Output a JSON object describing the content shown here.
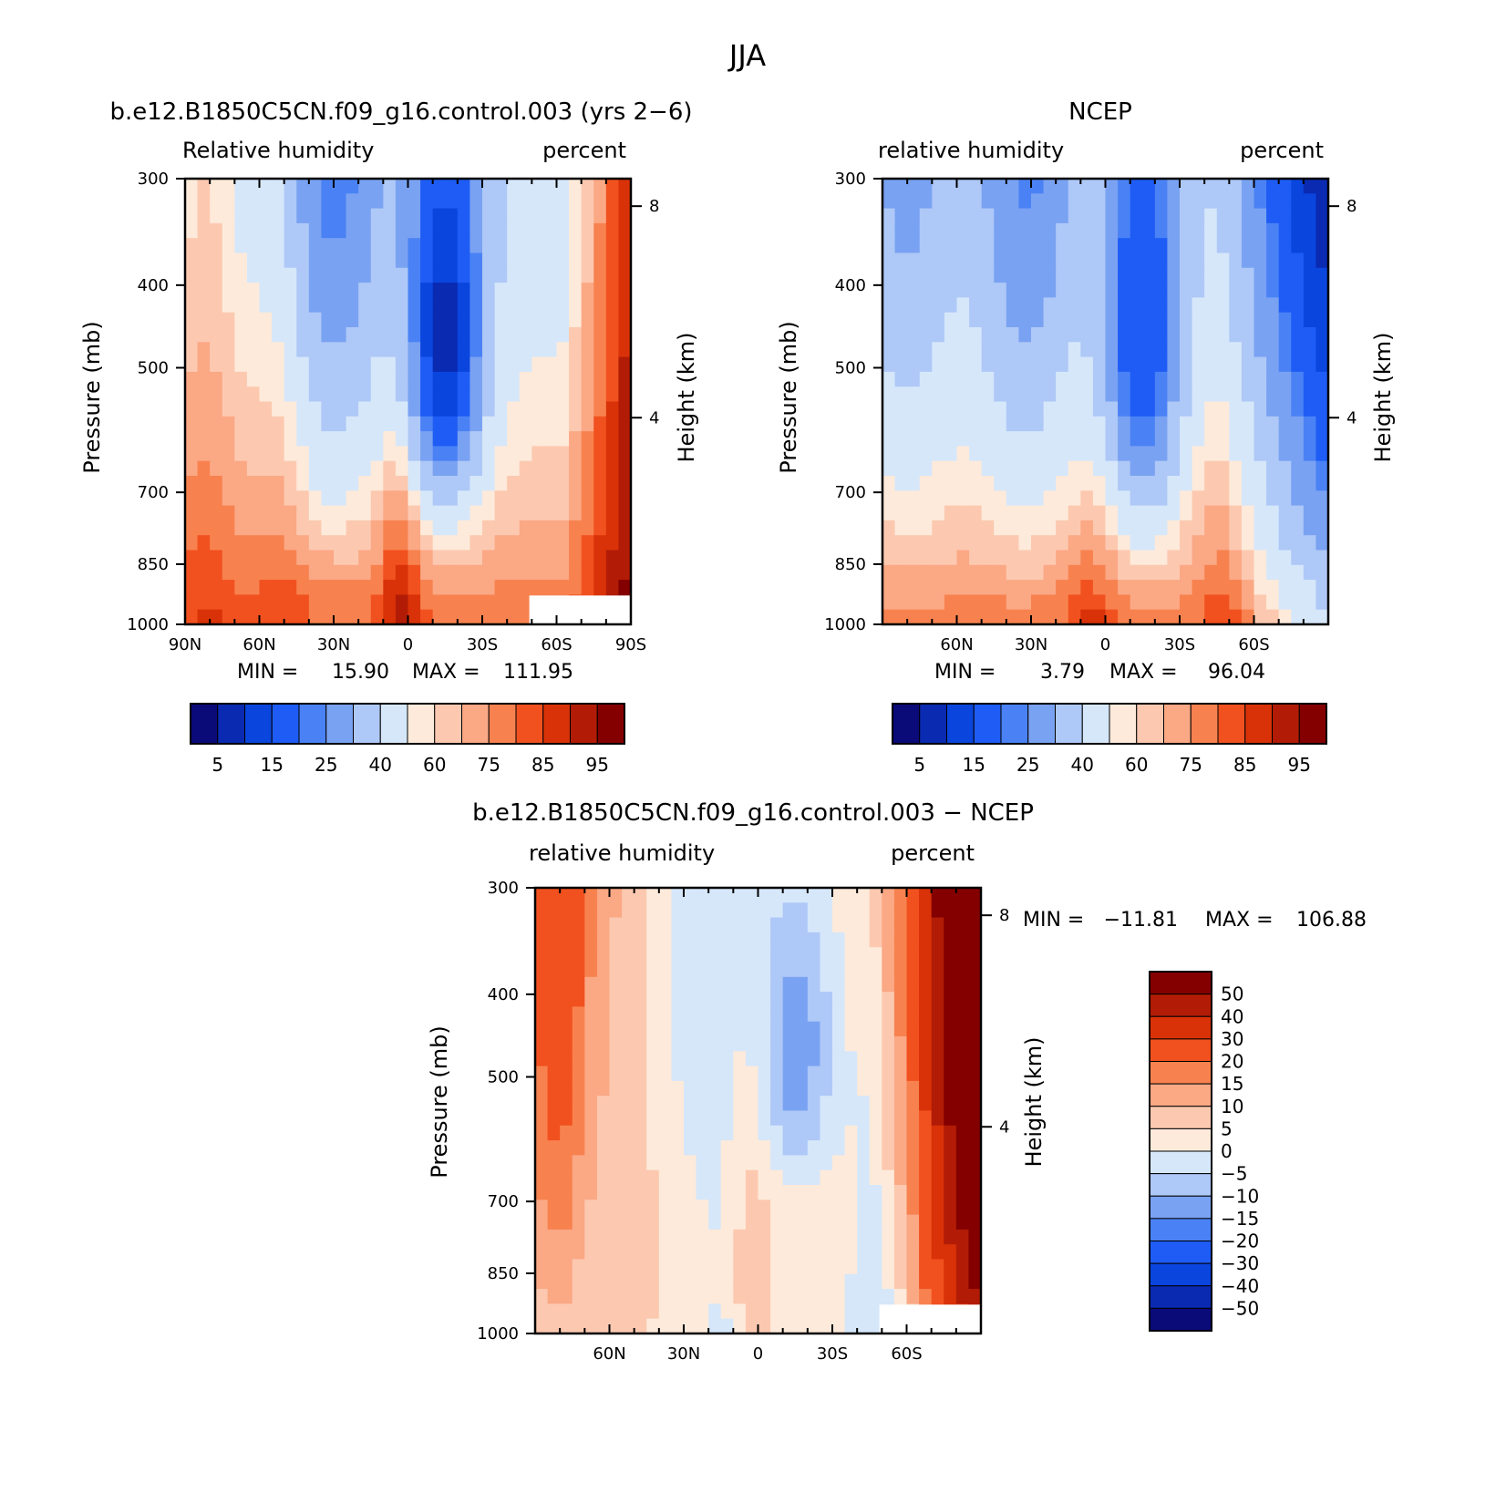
{
  "main_title": "JJA",
  "colors": {
    "model_palette": [
      "#0a0a78",
      "#0a2ab2",
      "#0a45de",
      "#1e5cf5",
      "#4a82f5",
      "#7aa2f2",
      "#aec8f7",
      "#d6e7fa",
      "#fdeada",
      "#fcc9b0",
      "#fba885",
      "#f7824f",
      "#f1511f",
      "#d93208",
      "#b21c06",
      "#840000"
    ],
    "diff_palette": [
      "#0a0a78",
      "#0a2ab2",
      "#0a45de",
      "#1e5cf5",
      "#4a82f5",
      "#7aa2f2",
      "#aec8f7",
      "#d6e7fa",
      "#fdeada",
      "#fcc9b0",
      "#fba885",
      "#f7824f",
      "#f1511f",
      "#d93208",
      "#b21c06",
      "#840000"
    ]
  },
  "chart_data": [
    {
      "type": "heatmap",
      "title": "b.e12.B1850C5CN.f09_g16.control.003 (yrs 2−6)",
      "left_label": "Relative humidity",
      "right_label": "percent",
      "ylabel": "Pressure (mb)",
      "ylabel_right": "Height (km)",
      "x_ticks": [
        "90N",
        "60N",
        "30N",
        "0",
        "30S",
        "60S",
        "90S"
      ],
      "x_tick_values": [
        90,
        60,
        30,
        0,
        -30,
        -60,
        -90
      ],
      "xlim": [
        90,
        -90
      ],
      "y_ticks": [
        "300",
        "400",
        "500",
        "700",
        "850",
        "1000"
      ],
      "y_tick_values": [
        300,
        400,
        500,
        700,
        850,
        1000
      ],
      "ylim": [
        1000,
        300
      ],
      "height_ticks": [
        "8",
        "4"
      ],
      "height_tick_values": [
        8,
        4
      ],
      "stats": {
        "min_label": "MIN =",
        "min": "15.90",
        "max_label": "MAX =",
        "max": "111.95"
      },
      "colorbar_labels": [
        "5",
        "15",
        "25",
        "40",
        "60",
        "75",
        "85",
        "95"
      ],
      "missing_region": {
        "lat_from": -49,
        "lat_to": -90,
        "p_from": 925,
        "p_to": 1000
      },
      "field_name": "model"
    },
    {
      "type": "heatmap",
      "title": "NCEP",
      "left_label": "relative humidity",
      "right_label": "percent",
      "ylabel": "Pressure (mb)",
      "ylabel_right": "Height (km)",
      "x_ticks": [
        "60N",
        "30N",
        "0",
        "30S",
        "60S"
      ],
      "x_tick_values": [
        60,
        30,
        0,
        -30,
        -60
      ],
      "xlim": [
        90,
        -90
      ],
      "y_ticks": [
        "300",
        "400",
        "500",
        "700",
        "850",
        "1000"
      ],
      "y_tick_values": [
        300,
        400,
        500,
        700,
        850,
        1000
      ],
      "ylim": [
        1000,
        300
      ],
      "height_ticks": [
        "8",
        "4"
      ],
      "height_tick_values": [
        8,
        4
      ],
      "stats": {
        "min_label": "MIN =",
        "min": "3.79",
        "max_label": "MAX =",
        "max": "96.04"
      },
      "colorbar_labels": [
        "5",
        "15",
        "25",
        "40",
        "60",
        "75",
        "85",
        "95"
      ],
      "field_name": "ncep"
    },
    {
      "type": "heatmap",
      "title": "b.e12.B1850C5CN.f09_g16.control.003 − NCEP",
      "left_label": "relative humidity",
      "right_label": "percent",
      "ylabel": "Pressure (mb)",
      "ylabel_right": "Height (km)",
      "x_ticks": [
        "60N",
        "30N",
        "0",
        "30S",
        "60S"
      ],
      "x_tick_values": [
        60,
        30,
        0,
        -30,
        -60
      ],
      "xlim": [
        90,
        -90
      ],
      "y_ticks": [
        "300",
        "400",
        "500",
        "700",
        "850",
        "1000"
      ],
      "y_tick_values": [
        300,
        400,
        500,
        700,
        850,
        1000
      ],
      "ylim": [
        1000,
        300
      ],
      "height_ticks": [
        "8",
        "4"
      ],
      "height_tick_values": [
        8,
        4
      ],
      "stats": {
        "min_label": "MIN =",
        "min": "−11.81",
        "max_label": "MAX =",
        "max": "106.88"
      },
      "colorbar_labels": [
        "50",
        "40",
        "30",
        "20",
        "15",
        "10",
        "5",
        "0",
        "−5",
        "−10",
        "−15",
        "−20",
        "−30",
        "−40",
        "−50"
      ],
      "colorbar_levels_desc": [
        50,
        40,
        30,
        20,
        15,
        10,
        5,
        0,
        -5,
        -10,
        -15,
        -20,
        -30,
        -40,
        -50
      ],
      "missing_region": {
        "lat_from": -49,
        "lat_to": -90,
        "p_from": 925,
        "p_to": 1000
      },
      "field_name": "diff"
    }
  ]
}
